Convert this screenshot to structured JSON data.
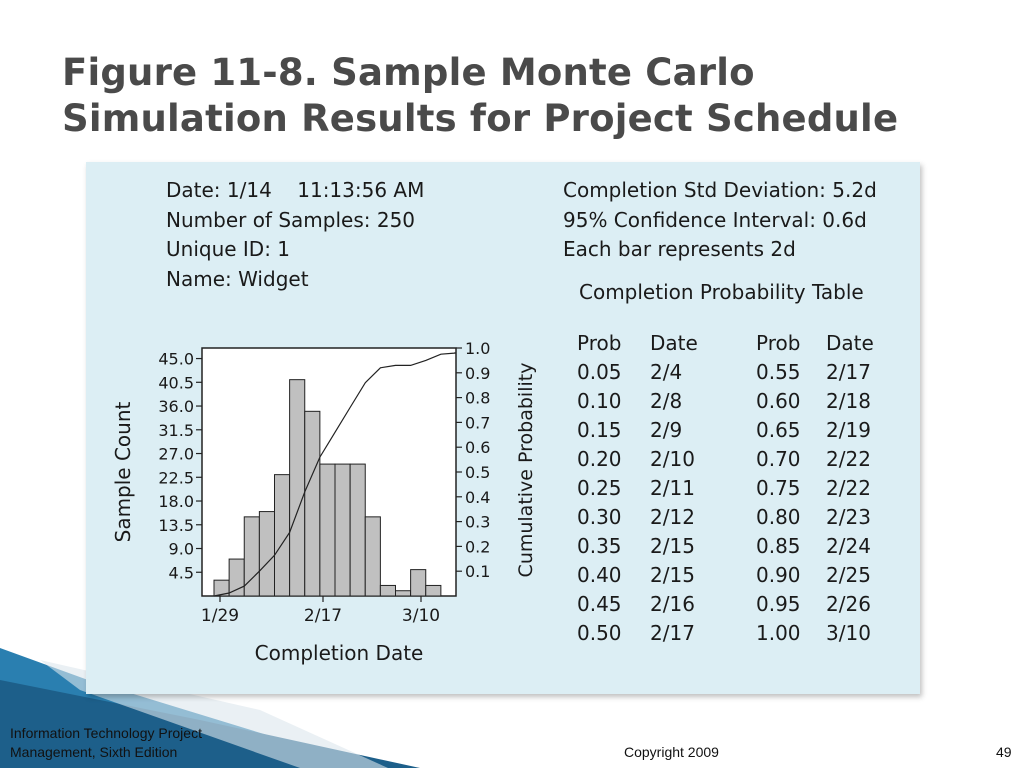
{
  "slide": {
    "title_line1": "Figure 11-8. Sample Monte Carlo",
    "title_line2": "Simulation Results for Project Schedule",
    "footer_book_line1": "Information Technology Project",
    "footer_book_line2": "Management, Sixth Edition",
    "copyright": "Copyright 2009",
    "page_number": "49"
  },
  "colors": {
    "title": "#4a4a4a",
    "panel_bg": "#dceef4",
    "bar_fill": "#c0c0c0",
    "decor_blue": "#2a7fb0"
  },
  "figure": {
    "meta": {
      "date": "Date: 1/14    11:13:56 AM",
      "samples": "Number of Samples: 250",
      "unique_id": "Unique ID: 1",
      "name": "Name: Widget"
    },
    "stats": {
      "std_dev": "Completion Std Deviation: 5.2d",
      "confidence": "95% Confidence Interval: 0.6d",
      "bar_width": "Each bar represents 2d"
    },
    "table": {
      "title": "Completion Probability Table",
      "headers": [
        "Prob",
        "Date",
        "Prob",
        "Date"
      ],
      "rows": [
        [
          "0.05",
          "2/4",
          "0.55",
          "2/17"
        ],
        [
          "0.10",
          "2/8",
          "0.60",
          "2/18"
        ],
        [
          "0.15",
          "2/9",
          "0.65",
          "2/19"
        ],
        [
          "0.20",
          "2/10",
          "0.70",
          "2/22"
        ],
        [
          "0.25",
          "2/11",
          "0.75",
          "2/22"
        ],
        [
          "0.30",
          "2/12",
          "0.80",
          "2/23"
        ],
        [
          "0.35",
          "2/15",
          "0.85",
          "2/24"
        ],
        [
          "0.40",
          "2/15",
          "0.90",
          "2/25"
        ],
        [
          "0.45",
          "2/16",
          "0.95",
          "2/26"
        ],
        [
          "0.50",
          "2/17",
          "1.00",
          "3/10"
        ]
      ]
    }
  },
  "chart_data": {
    "type": "bar",
    "xlabel": "Completion Date",
    "ylabel": "Sample Count",
    "y2label": "Cumulative Probability",
    "ylim": [
      0,
      47
    ],
    "y2lim": [
      0,
      1.0
    ],
    "yticks": [
      "45.0",
      "40.5",
      "36.0",
      "31.5",
      "27.0",
      "22.5",
      "18.0",
      "13.5",
      "9.0",
      "4.5"
    ],
    "y2ticks": [
      "1.0",
      "0.9",
      "0.8",
      "0.7",
      "0.6",
      "0.5",
      "0.4",
      "0.3",
      "0.2",
      "0.1"
    ],
    "xticks": [
      "1/29",
      "2/17",
      "3/10"
    ],
    "bar_days": 2,
    "values": [
      3,
      7,
      15,
      16,
      23,
      41,
      35,
      25,
      25,
      25,
      15,
      2,
      1,
      5,
      2,
      0
    ],
    "cumulative": [
      0.0,
      0.012,
      0.04,
      0.1,
      0.164,
      0.256,
      0.42,
      0.56,
      0.66,
      0.76,
      0.86,
      0.92,
      0.93,
      0.93,
      0.95,
      0.975,
      0.98
    ],
    "grid": false
  }
}
